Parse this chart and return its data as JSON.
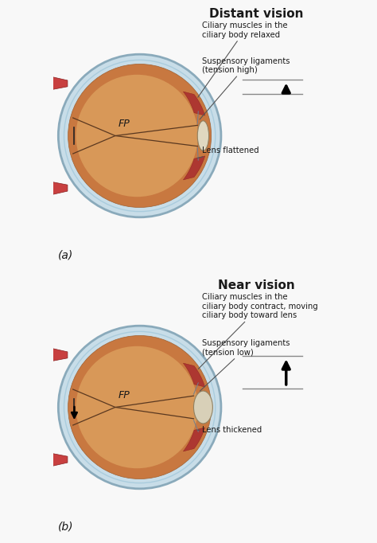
{
  "bg_color": "#f8f8f8",
  "title_a": "Distant vision",
  "title_b": "Near vision",
  "label_a": "(a)",
  "label_b": "(b)",
  "text_color": "#1a1a1a",
  "fp_color": "#1a1a1a",
  "sclera_outer_color": "#c8dde8",
  "sclera_edge_color": "#8aaabb",
  "retina_color": "#c87840",
  "vitreous_color": "#d89858",
  "muscle_color": "#c84040",
  "ciliary_color": "#aa3030",
  "lens_color_a": "#e0d8c0",
  "lens_color_b": "#d8d0b8",
  "fp_line_color": "#5a3820",
  "ligament_color": "#708090",
  "annotation_line_color": "#555555",
  "arrow_color": "#000000",
  "line_color": "#888888"
}
